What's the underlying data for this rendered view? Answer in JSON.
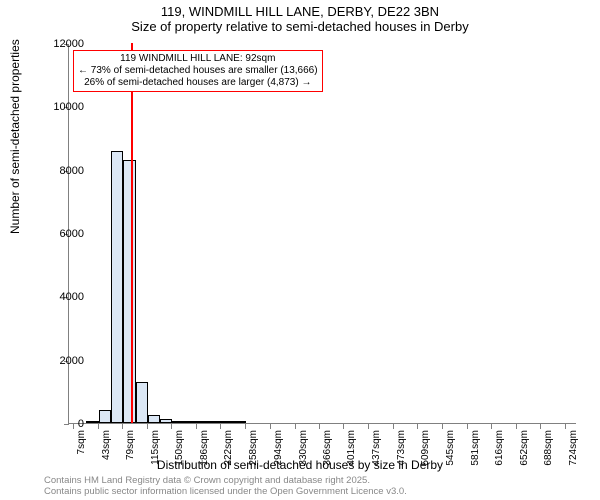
{
  "title": {
    "line1": "119, WINDMILL HILL LANE, DERBY, DE22 3BN",
    "line2": "Size of property relative to semi-detached houses in Derby"
  },
  "chart": {
    "type": "histogram",
    "xlabel": "Distribution of semi-detached houses by size in Derby",
    "ylabel": "Number of semi-detached properties",
    "ylim": [
      0,
      12000
    ],
    "ytick_step": 2000,
    "yticks": [
      0,
      2000,
      4000,
      6000,
      8000,
      10000,
      12000
    ],
    "xticks": [
      "7sqm",
      "43sqm",
      "79sqm",
      "115sqm",
      "150sqm",
      "186sqm",
      "222sqm",
      "258sqm",
      "294sqm",
      "330sqm",
      "366sqm",
      "401sqm",
      "437sqm",
      "473sqm",
      "509sqm",
      "545sqm",
      "581sqm",
      "616sqm",
      "652sqm",
      "688sqm",
      "724sqm"
    ],
    "xtick_values": [
      7,
      43,
      79,
      115,
      150,
      186,
      222,
      258,
      294,
      330,
      366,
      401,
      437,
      473,
      509,
      545,
      581,
      616,
      652,
      688,
      724
    ],
    "x_range": [
      0,
      740
    ],
    "bars": [
      {
        "x_start": 25,
        "x_end": 43,
        "value": 50
      },
      {
        "x_start": 43,
        "x_end": 61,
        "value": 400
      },
      {
        "x_start": 61,
        "x_end": 79,
        "value": 8600
      },
      {
        "x_start": 79,
        "x_end": 97,
        "value": 8300
      },
      {
        "x_start": 97,
        "x_end": 115,
        "value": 1300
      },
      {
        "x_start": 115,
        "x_end": 133,
        "value": 250
      },
      {
        "x_start": 133,
        "x_end": 150,
        "value": 130
      },
      {
        "x_start": 150,
        "x_end": 168,
        "value": 60
      },
      {
        "x_start": 168,
        "x_end": 186,
        "value": 30
      },
      {
        "x_start": 186,
        "x_end": 204,
        "value": 25
      },
      {
        "x_start": 204,
        "x_end": 222,
        "value": 15
      },
      {
        "x_start": 222,
        "x_end": 240,
        "value": 10
      },
      {
        "x_start": 240,
        "x_end": 258,
        "value": 8
      }
    ],
    "bar_fill": "#dbe7f5",
    "bar_stroke": "#000000",
    "background_color": "#ffffff",
    "axis_color": "#808080",
    "marker": {
      "x_value": 92,
      "color": "#ff0000",
      "width": 2
    },
    "annotation": {
      "line1": "119 WINDMILL HILL LANE: 92sqm",
      "line2": "← 73% of semi-detached houses are smaller (13,666)",
      "line3": "26% of semi-detached houses are larger (4,873) →",
      "border_color": "#ff0000",
      "background": "#ffffff",
      "fontsize": 10
    },
    "label_fontsize": 12,
    "tick_fontsize": 11
  },
  "footer": {
    "line1": "Contains HM Land Registry data © Crown copyright and database right 2025.",
    "line2": "Contains public sector information licensed under the Open Government Licence v3.0.",
    "color": "#888888",
    "fontsize": 9.5
  }
}
